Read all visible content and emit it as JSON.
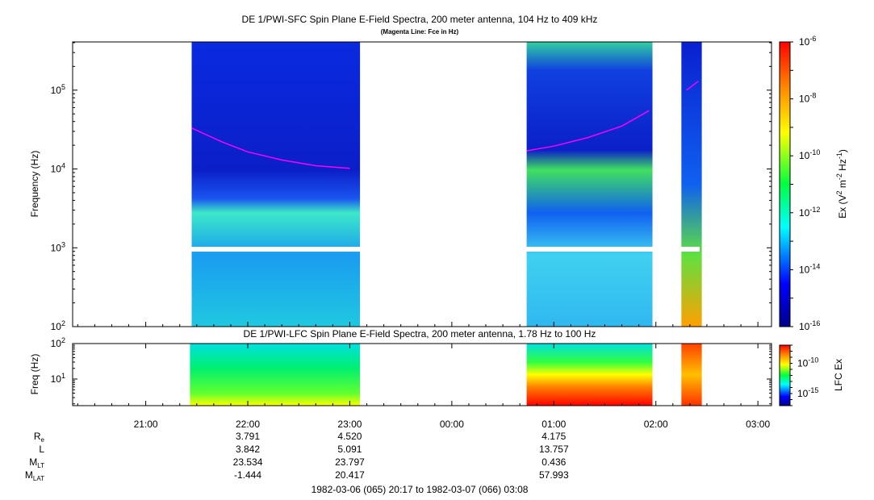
{
  "titles": {
    "sfc": "DE 1/PWI-SFC  Spin Plane E-Field Spectra, 200 meter antenna, 104 Hz to 409 kHz",
    "sfc_sub": "(Magenta Line: Fce in Hz)",
    "lfc": "DE 1/PWI-LFC  Spin Plane E-Field Spectra, 200 meter antenna, 1.78 Hz to 100 Hz"
  },
  "chart_data": [
    {
      "type": "heatmap",
      "name": "sfc-spectrogram",
      "ylabel": "Frequency (Hz)",
      "yscale": "log",
      "ylim_hz": [
        100,
        409000
      ],
      "yticks": [
        {
          "v": 100,
          "base": "10",
          "exp": "2"
        },
        {
          "v": 1000,
          "base": "10",
          "exp": "3"
        },
        {
          "v": 10000,
          "base": "10",
          "exp": "4"
        },
        {
          "v": 100000,
          "base": "10",
          "exp": "5"
        }
      ],
      "colorbar": {
        "label_parts": [
          "Ex (V",
          "2",
          " m",
          "-2",
          " Hz",
          "-1",
          ")"
        ],
        "scale": "log",
        "range": [
          1e-16,
          1e-06
        ],
        "ticks": [
          {
            "v": -16,
            "base": "10",
            "exp": "-16"
          },
          {
            "v": -14,
            "base": "10",
            "exp": "-14"
          },
          {
            "v": -12,
            "base": "10",
            "exp": "-12"
          },
          {
            "v": -10,
            "base": "10",
            "exp": "-10"
          },
          {
            "v": -8,
            "base": "10",
            "exp": "-8"
          },
          {
            "v": -6,
            "base": "10",
            "exp": "-6"
          }
        ]
      },
      "data_segments": [
        {
          "start": "21:27",
          "end": "23:06"
        },
        {
          "start": "00:44",
          "end": "01:58"
        },
        {
          "start": "02:15",
          "end": "02:27"
        }
      ],
      "fce_line": [
        {
          "t": "21:27",
          "hz": 33000
        },
        {
          "t": "21:45",
          "hz": 22000
        },
        {
          "t": "22:00",
          "hz": 16500
        },
        {
          "t": "22:20",
          "hz": 13000
        },
        {
          "t": "22:40",
          "hz": 11000
        },
        {
          "t": "23:00",
          "hz": 10200
        },
        {
          "t": "00:44",
          "hz": 17000
        },
        {
          "t": "01:00",
          "hz": 19500
        },
        {
          "t": "01:20",
          "hz": 25000
        },
        {
          "t": "01:40",
          "hz": 35000
        },
        {
          "t": "01:56",
          "hz": 55000
        },
        {
          "t": "02:18",
          "hz": 100000
        },
        {
          "t": "02:25",
          "hz": 130000
        }
      ]
    },
    {
      "type": "heatmap",
      "name": "lfc-spectrogram",
      "ylabel": "Freq (Hz)",
      "yscale": "log",
      "ylim_hz": [
        1.78,
        100
      ],
      "yticks": [
        {
          "v": 10,
          "base": "10",
          "exp": "1"
        },
        {
          "v": 100,
          "base": "10",
          "exp": "2"
        }
      ],
      "colorbar": {
        "label": "LFC Ex",
        "scale": "log",
        "range": [
          1e-17,
          1e-07
        ],
        "ticks": [
          {
            "v": -15,
            "base": "10",
            "exp": "-15"
          },
          {
            "v": -10,
            "base": "10",
            "exp": "-10"
          }
        ]
      },
      "data_segments": [
        {
          "start": "21:26",
          "end": "23:06"
        },
        {
          "start": "00:44",
          "end": "01:58"
        },
        {
          "start": "02:15",
          "end": "02:27"
        }
      ]
    }
  ],
  "time_axis": {
    "range": [
      "20:17",
      "03:08"
    ],
    "ticks": [
      "21:00",
      "22:00",
      "23:00",
      "00:00",
      "01:00",
      "02:00",
      "03:00"
    ]
  },
  "ephemeris": {
    "rows": [
      {
        "label": "R",
        "sub": "e",
        "values": [
          "3.791",
          "4.520",
          "4.175"
        ]
      },
      {
        "label": "L",
        "sub": "",
        "values": [
          "3.842",
          "5.091",
          "13.757"
        ]
      },
      {
        "label": "M",
        "sub": "LT",
        "values": [
          "23.534",
          "23.797",
          "0.436"
        ]
      },
      {
        "label": "M",
        "sub": "LAT",
        "values": [
          "-1.444",
          "20.417",
          "57.993"
        ]
      }
    ],
    "times": [
      "22:00",
      "23:00",
      "01:00"
    ]
  },
  "date_range": "1982-03-06 (065) 20:17 to 1982-03-07 (066) 03:08"
}
